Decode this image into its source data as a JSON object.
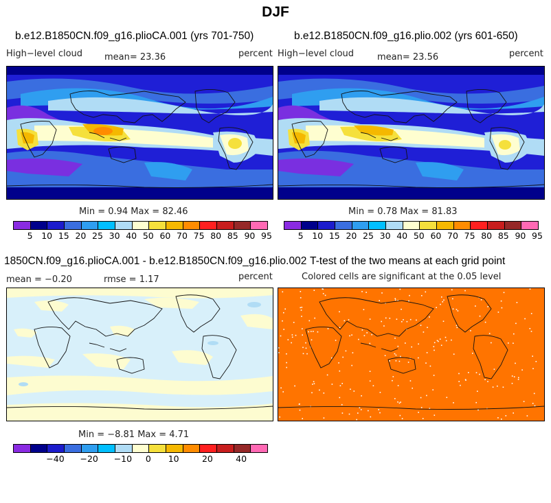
{
  "season_title": "DJF",
  "panels": {
    "top_left": {
      "title": "b.e12.B1850CN.f09_g16.plioCA.001 (yrs 701-750)",
      "variable": "High−level cloud",
      "mean_text": "mean=  23.36",
      "units": "percent",
      "minmax_text": "Min =   0.94 Max =  82.46"
    },
    "top_right": {
      "title": "b.e12.B1850CN.f09_g16.plio.002 (yrs 601-650)",
      "variable": "High−level cloud",
      "mean_text": "mean=  23.56",
      "units": "percent",
      "minmax_text": "Min =   0.78 Max =  81.83"
    },
    "bottom_left": {
      "title": "1850CN.f09_g16.plioCA.001 - b.e12.B1850CN.f09_g16.plio.002",
      "mean_text": "mean =  −0.20",
      "rmse_text": "rmse =    1.17",
      "units": "percent",
      "minmax_text": "Min =  −8.81 Max =    4.71"
    },
    "bottom_right": {
      "title": "T-test of the two means at each grid point",
      "subtitle": "Colored cells are significant at the 0.05 level"
    }
  },
  "colorbar": {
    "colors": [
      "#8a2be2",
      "#00008b",
      "#1c1ccc",
      "#3a6ee0",
      "#2f9ef0",
      "#00bfff",
      "#b0dcf5",
      "#fefed0",
      "#f5e03c",
      "#f5b800",
      "#ff8c00",
      "#ff2020",
      "#c81e1e",
      "#962828",
      "#ff69b4"
    ],
    "abs_labels": [
      "5",
      "10",
      "15",
      "20",
      "25",
      "30",
      "40",
      "50",
      "60",
      "70",
      "75",
      "80",
      "85",
      "90",
      "95"
    ],
    "diff_labels": [
      "−40",
      "−20",
      "−10",
      "0",
      "10",
      "20",
      "40"
    ]
  },
  "ttest_color": "#ff7400",
  "ocean_low_color": "#1f1fd6",
  "diff_light_blue": "#d8f0fa",
  "diff_light_yellow": "#fdfcd0"
}
